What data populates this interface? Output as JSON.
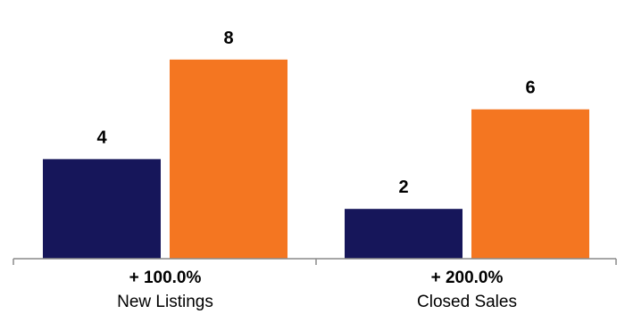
{
  "chart_data": {
    "type": "bar",
    "categories": [
      "New Listings",
      "Closed Sales"
    ],
    "changes": [
      "+ 100.0%",
      "+ 200.0%"
    ],
    "series": [
      {
        "values": [
          4,
          2
        ],
        "color": "#16165a"
      },
      {
        "values": [
          8,
          6
        ],
        "color": "#f47621"
      }
    ],
    "ylim": [
      0,
      8.96
    ],
    "grid": false,
    "legend": "none",
    "axis_color": "#8a8a8a"
  }
}
